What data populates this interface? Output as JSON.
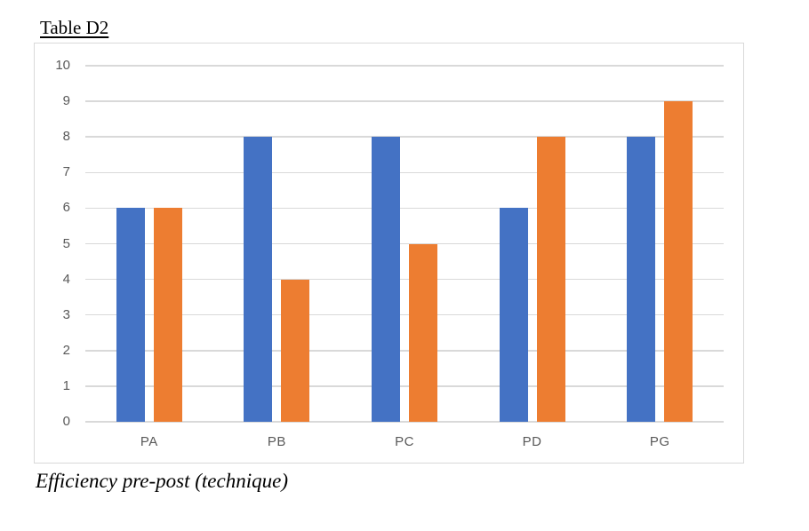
{
  "page": {
    "title": "Table D2",
    "caption": "Efficiency pre-post (technique)"
  },
  "chart_data": {
    "type": "bar",
    "title": "Table D2",
    "caption": "Efficiency pre-post (technique)",
    "categories": [
      "PA",
      "PB",
      "PC",
      "PD",
      "PG"
    ],
    "series": [
      {
        "name": "series-1",
        "color": "#4472C4",
        "values": [
          6,
          8,
          8,
          6,
          8
        ]
      },
      {
        "name": "series-2",
        "color": "#ED7D31",
        "values": [
          6,
          4,
          5,
          8,
          9
        ]
      }
    ],
    "xlabel": "",
    "ylabel": "",
    "ylim": [
      0,
      10
    ],
    "yticks": [
      0,
      1,
      2,
      3,
      4,
      5,
      6,
      7,
      8,
      9,
      10
    ],
    "grid": true,
    "legend": "none",
    "colors": {
      "gridline": "#d9d9d9",
      "axis_text": "#595959",
      "frame_border": "#d9d9d9",
      "background": "#ffffff"
    }
  }
}
